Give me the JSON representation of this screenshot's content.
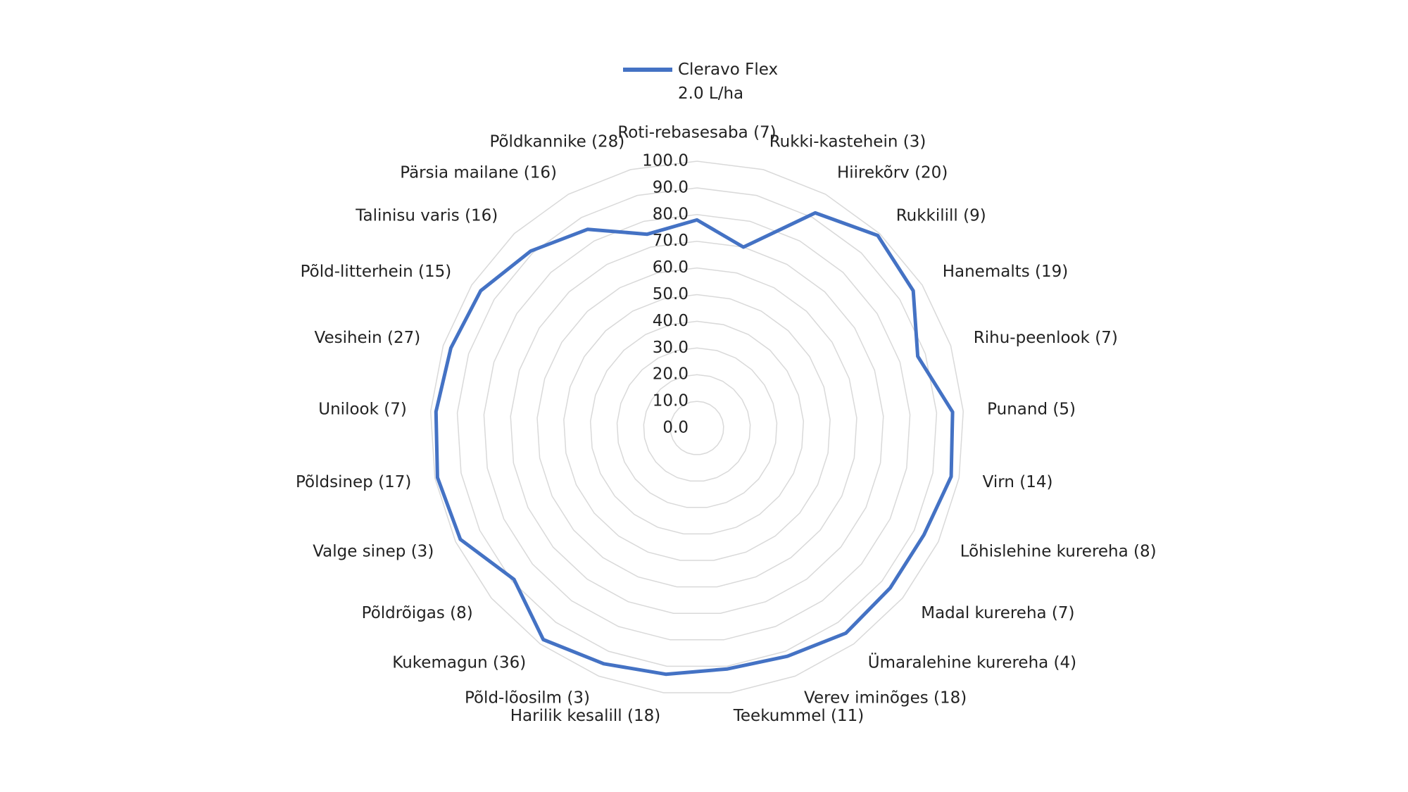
{
  "chart_data": {
    "type": "radar",
    "series": [
      {
        "name": "Cleravo Flex\n2.0 L/ha",
        "color": "#4472c4",
        "values": [
          78,
          70,
          92,
          99,
          96,
          87,
          96,
          97,
          94,
          94,
          95,
          92,
          91,
          93,
          95,
          98,
          89,
          98,
          99,
          98,
          97,
          96,
          91,
          85,
          75
        ]
      }
    ],
    "categories": [
      "Roti-rebasesaba (7)",
      "Rukki-kastehein (3)",
      "Hiirekõrv (20)",
      "Rukkilill (9)",
      "Hanemalts (19)",
      "Rihu-peenlook (7)",
      "Punand (5)",
      "Virn (14)",
      "Lõhislehine kurereha (8)",
      "Madal kurereha (7)",
      "Ümaralehine kurereha (4)",
      "Verev iminõges (18)",
      "Teekummel (11)",
      "Harilik kesalill (18)",
      "Põld-lõosilm (3)",
      "Kukemagun (36)",
      "Põldrõigas (8)",
      "Valge sinep (3)",
      "Põldsinep (17)",
      "Unilook (7)",
      "Vesihein (27)",
      "Põld-litterhein (15)",
      "Talinisu varis (16)",
      "Pärsia mailane (16)",
      "Põldkannike (28)"
    ],
    "ylim": [
      0,
      100
    ],
    "yticks": [
      {
        "value": 0,
        "label": "0.0"
      },
      {
        "value": 10,
        "label": "10.0"
      },
      {
        "value": 20,
        "label": "20.0"
      },
      {
        "value": 30,
        "label": "30.0"
      },
      {
        "value": 40,
        "label": "40.0"
      },
      {
        "value": 50,
        "label": "50.0"
      },
      {
        "value": 60,
        "label": "60.0"
      },
      {
        "value": 70,
        "label": "70.0"
      },
      {
        "value": 80,
        "label": "80.0"
      },
      {
        "value": 90,
        "label": "90.0"
      },
      {
        "value": 100,
        "label": "100.0"
      }
    ],
    "grid": true,
    "legend": "top"
  }
}
